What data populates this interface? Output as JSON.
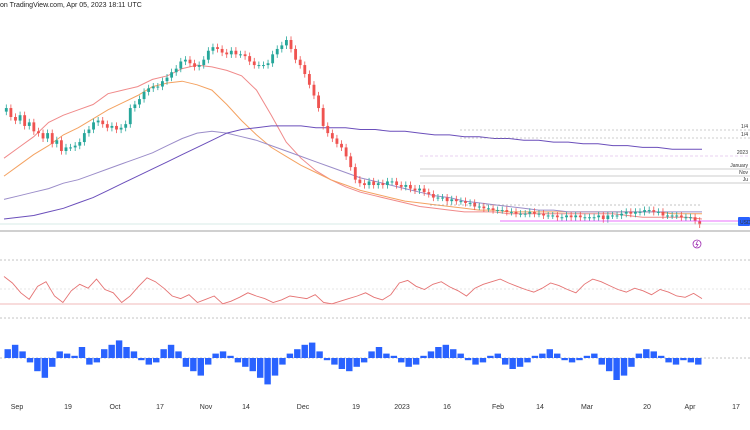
{
  "header": {
    "attribution": "on TradingView.com, Apr 05, 2023 18:11 UTC"
  },
  "chart_data": {
    "type": "candlestick",
    "instrument_label": "USD",
    "x_tick_labels": [
      "Sep",
      "19",
      "Oct",
      "17",
      "Nov",
      "14",
      "Dec",
      "19",
      "2023",
      "16",
      "Feb",
      "14",
      "Mar",
      "20",
      "Apr",
      "17"
    ],
    "level_labels": [
      "1/4",
      "1/4",
      "2023",
      "January",
      "Nov",
      "Ju",
      "USD"
    ],
    "candles": [
      [
        60,
        62
      ],
      [
        62,
        57
      ],
      [
        57,
        55
      ],
      [
        55,
        58
      ],
      [
        58,
        52
      ],
      [
        52,
        54
      ],
      [
        54,
        49
      ],
      [
        49,
        48
      ],
      [
        48,
        45
      ],
      [
        45,
        48
      ],
      [
        48,
        42
      ],
      [
        42,
        44
      ],
      [
        44,
        38
      ],
      [
        38,
        40
      ],
      [
        40,
        40
      ],
      [
        40,
        41
      ],
      [
        41,
        43
      ],
      [
        43,
        48
      ],
      [
        48,
        50
      ],
      [
        50,
        54
      ],
      [
        54,
        55
      ],
      [
        55,
        53
      ],
      [
        53,
        51
      ],
      [
        51,
        52
      ],
      [
        52,
        50
      ],
      [
        50,
        51
      ],
      [
        51,
        53
      ],
      [
        53,
        62
      ],
      [
        62,
        64
      ],
      [
        64,
        67
      ],
      [
        67,
        71
      ],
      [
        71,
        73
      ],
      [
        73,
        74
      ],
      [
        74,
        74
      ],
      [
        74,
        77
      ],
      [
        77,
        79
      ],
      [
        79,
        82
      ],
      [
        82,
        84
      ],
      [
        84,
        88
      ],
      [
        88,
        89
      ],
      [
        89,
        87
      ],
      [
        87,
        85
      ],
      [
        85,
        86
      ],
      [
        86,
        89
      ],
      [
        89,
        94
      ],
      [
        94,
        96
      ],
      [
        96,
        95
      ],
      [
        95,
        93
      ],
      [
        93,
        92
      ],
      [
        92,
        94
      ],
      [
        94,
        92
      ],
      [
        92,
        92
      ],
      [
        92,
        91
      ],
      [
        91,
        88
      ],
      [
        88,
        86
      ],
      [
        86,
        86
      ],
      [
        86,
        86
      ],
      [
        86,
        87
      ],
      [
        87,
        92
      ],
      [
        92,
        95
      ],
      [
        95,
        97
      ],
      [
        97,
        100
      ],
      [
        100,
        95
      ],
      [
        95,
        89
      ],
      [
        89,
        86
      ],
      [
        86,
        81
      ],
      [
        81,
        75
      ],
      [
        75,
        69
      ],
      [
        69,
        62
      ],
      [
        62,
        52
      ],
      [
        52,
        48
      ],
      [
        48,
        45
      ],
      [
        45,
        42
      ],
      [
        42,
        40
      ],
      [
        40,
        35
      ],
      [
        35,
        29
      ],
      [
        29,
        22
      ],
      [
        22,
        20
      ],
      [
        20,
        19
      ],
      [
        19,
        21
      ],
      [
        21,
        19
      ],
      [
        19,
        20
      ],
      [
        20,
        19
      ],
      [
        19,
        21
      ],
      [
        21,
        21
      ],
      [
        21,
        19
      ],
      [
        19,
        18
      ],
      [
        18,
        19
      ],
      [
        19,
        17
      ],
      [
        17,
        16
      ],
      [
        16,
        17
      ],
      [
        17,
        15
      ],
      [
        15,
        14
      ],
      [
        14,
        12
      ],
      [
        12,
        12
      ],
      [
        12,
        12
      ],
      [
        12,
        10
      ],
      [
        10,
        11
      ],
      [
        11,
        10
      ],
      [
        10,
        10
      ],
      [
        10,
        9
      ],
      [
        9,
        9
      ],
      [
        9,
        7
      ],
      [
        7,
        7
      ],
      [
        7,
        6
      ],
      [
        6,
        6
      ],
      [
        6,
        5
      ],
      [
        5,
        5
      ],
      [
        5,
        5
      ],
      [
        5,
        4
      ],
      [
        4,
        4
      ],
      [
        4,
        3
      ],
      [
        3,
        3
      ],
      [
        3,
        3
      ],
      [
        3,
        4
      ],
      [
        4,
        3
      ],
      [
        3,
        3
      ],
      [
        3,
        2
      ],
      [
        2,
        2
      ],
      [
        2,
        2
      ],
      [
        2,
        1
      ],
      [
        1,
        1
      ],
      [
        1,
        2
      ],
      [
        2,
        1
      ],
      [
        1,
        2
      ],
      [
        2,
        1
      ],
      [
        1,
        1
      ],
      [
        1,
        1
      ],
      [
        1,
        1
      ],
      [
        1,
        2
      ],
      [
        2,
        0
      ],
      [
        0,
        2
      ],
      [
        2,
        2
      ],
      [
        2,
        2
      ],
      [
        2,
        3
      ],
      [
        3,
        4
      ],
      [
        4,
        3
      ],
      [
        3,
        4
      ],
      [
        4,
        4
      ],
      [
        4,
        5
      ],
      [
        5,
        5
      ],
      [
        5,
        4
      ],
      [
        4,
        4
      ],
      [
        4,
        2
      ],
      [
        2,
        2
      ],
      [
        2,
        2
      ],
      [
        2,
        2
      ],
      [
        2,
        1
      ],
      [
        1,
        1
      ],
      [
        1,
        1
      ],
      [
        1,
        -1
      ],
      [
        -1,
        -3
      ]
    ],
    "ma_series": [
      {
        "name": "ma-fast",
        "color": "#f08a8a",
        "values": [
          34,
          40,
          46,
          54,
          58,
          61,
          64,
          70,
          72,
          74,
          78,
          80,
          84,
          86,
          85,
          83,
          80,
          72,
          58,
          43,
          34,
          27,
          22,
          18,
          15,
          13,
          11,
          9,
          7,
          6,
          5,
          4,
          4,
          4,
          3,
          3,
          3,
          3,
          3,
          3,
          3,
          3,
          2,
          1,
          1,
          1,
          1,
          0
        ]
      },
      {
        "name": "ma-mid",
        "color": "#f4a261",
        "values": [
          24,
          30,
          36,
          41,
          47,
          51,
          56,
          61,
          65,
          69,
          74,
          76,
          77,
          75,
          72,
          64,
          55,
          47,
          40,
          35,
          30,
          26,
          22,
          19,
          16,
          14,
          12,
          10,
          9,
          8,
          7,
          6,
          5,
          5,
          4,
          4,
          4,
          4,
          4,
          4,
          4,
          4,
          4,
          4,
          4,
          3,
          3,
          3
        ]
      },
      {
        "name": "ma-slow",
        "color": "#9b8dc9",
        "values": [
          11,
          13,
          15,
          17,
          20,
          22,
          25,
          28,
          31,
          34,
          37,
          41,
          45,
          48,
          49,
          48,
          46,
          44,
          41,
          38,
          35,
          32,
          29,
          26,
          23,
          21,
          19,
          17,
          15,
          13,
          12,
          10,
          9,
          8,
          7,
          6,
          5,
          5,
          4,
          4,
          4,
          4,
          4,
          4,
          4,
          4,
          4,
          4
        ]
      },
      {
        "name": "ma-long",
        "color": "#6b4fbb",
        "values": [
          0,
          1,
          2,
          4,
          6,
          9,
          12,
          16,
          20,
          24,
          28,
          32,
          36,
          40,
          44,
          48,
          50,
          51,
          52,
          52,
          52,
          51,
          51,
          51,
          50,
          50,
          49,
          49,
          48,
          47,
          47,
          46,
          46,
          45,
          45,
          44,
          44,
          43,
          43,
          42,
          42,
          41,
          41,
          40,
          40,
          39,
          39,
          39
        ]
      }
    ],
    "rsi_values": [
      70,
      60,
      45,
      35,
      55,
      62,
      40,
      30,
      48,
      58,
      52,
      66,
      50,
      45,
      30,
      40,
      55,
      68,
      62,
      52,
      40,
      36,
      42,
      30,
      35,
      40,
      28,
      32,
      38,
      45,
      40,
      36,
      30,
      34,
      40,
      38,
      36,
      42,
      30,
      28,
      32,
      36,
      40,
      45,
      38,
      34,
      42,
      60,
      64,
      55,
      50,
      58,
      62,
      54,
      48,
      40,
      52,
      58,
      62,
      66,
      60,
      55,
      50,
      46,
      52,
      60,
      56,
      50,
      45,
      58,
      66,
      62,
      56,
      50,
      46,
      52,
      48,
      42,
      50,
      46,
      40,
      38,
      44,
      36
    ],
    "histogram_values": [
      4,
      6,
      3,
      -2,
      -6,
      -9,
      -4,
      3,
      2,
      1,
      5,
      -3,
      -2,
      4,
      6,
      8,
      5,
      3,
      -1,
      -3,
      -2,
      4,
      6,
      3,
      -4,
      -6,
      -8,
      -3,
      2,
      3,
      1,
      -2,
      -4,
      -6,
      -9,
      -12,
      -8,
      -3,
      2,
      4,
      6,
      7,
      3,
      -1,
      -3,
      -5,
      -6,
      -4,
      -2,
      3,
      5,
      2,
      1,
      -2,
      -4,
      -3,
      1,
      3,
      5,
      6,
      4,
      2,
      -1,
      -3,
      -2,
      1,
      2,
      -3,
      -5,
      -4,
      -2,
      1,
      2,
      4,
      2,
      -1,
      -2,
      -1,
      1,
      2,
      -3,
      -6,
      -10,
      -8,
      -4,
      2,
      4,
      3,
      1,
      -2,
      -3,
      -1,
      -2,
      -3
    ]
  }
}
